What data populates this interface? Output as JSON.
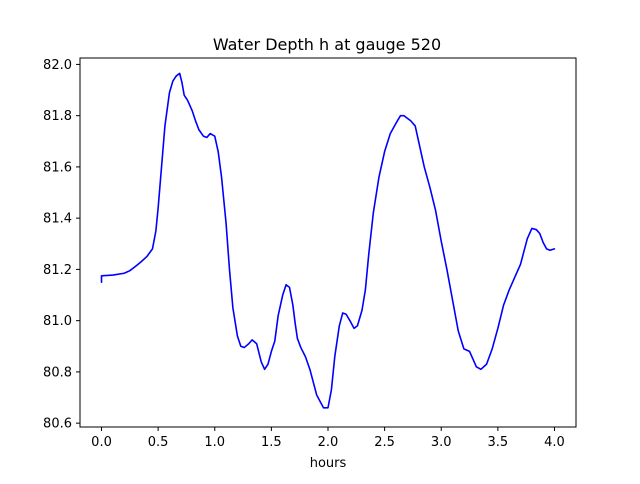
{
  "chart_data": {
    "type": "line",
    "title": "Water Depth h at gauge 520",
    "xlabel": "hours",
    "ylabel": "",
    "xlim": [
      -0.19,
      4.19
    ],
    "ylim": [
      80.585,
      82.025
    ],
    "xticks": [
      0.0,
      0.5,
      1.0,
      1.5,
      2.0,
      2.5,
      3.0,
      3.5,
      4.0
    ],
    "xtick_labels": [
      "0.0",
      "0.5",
      "1.0",
      "1.5",
      "2.0",
      "2.5",
      "3.0",
      "3.5",
      "4.0"
    ],
    "yticks": [
      80.6,
      80.8,
      81.0,
      81.2,
      81.4,
      81.6,
      81.8,
      82.0
    ],
    "ytick_labels": [
      "80.6",
      "80.8",
      "81.0",
      "81.2",
      "81.4",
      "81.6",
      "81.8",
      "82.0"
    ],
    "grid": false,
    "line_color": "#0000ff",
    "series": [
      {
        "x": [
          0.0,
          0.0,
          0.1,
          0.2,
          0.25,
          0.3,
          0.35,
          0.4,
          0.45,
          0.48,
          0.5,
          0.53,
          0.56,
          0.6,
          0.63,
          0.66,
          0.69,
          0.71,
          0.73,
          0.76,
          0.8,
          0.83,
          0.86,
          0.9,
          0.93,
          0.96,
          1.0,
          1.03,
          1.06,
          1.1,
          1.13,
          1.16,
          1.2,
          1.23,
          1.26,
          1.3,
          1.33,
          1.37,
          1.41,
          1.44,
          1.47,
          1.5,
          1.53,
          1.56,
          1.6,
          1.63,
          1.66,
          1.69,
          1.71,
          1.73,
          1.76,
          1.8,
          1.84,
          1.87,
          1.9,
          1.93,
          1.96,
          2.0,
          2.03,
          2.06,
          2.1,
          2.13,
          2.16,
          2.2,
          2.23,
          2.26,
          2.3,
          2.33,
          2.36,
          2.4,
          2.45,
          2.5,
          2.55,
          2.6,
          2.64,
          2.67,
          2.7,
          2.73,
          2.77,
          2.8,
          2.85,
          2.9,
          2.95,
          3.0,
          3.05,
          3.1,
          3.15,
          3.2,
          3.25,
          3.28,
          3.31,
          3.35,
          3.4,
          3.45,
          3.5,
          3.55,
          3.6,
          3.65,
          3.7,
          3.73,
          3.76,
          3.8,
          3.84,
          3.87,
          3.9,
          3.93,
          3.96,
          4.0
        ],
        "y": [
          81.15,
          81.175,
          81.178,
          81.185,
          81.195,
          81.212,
          81.23,
          81.25,
          81.28,
          81.35,
          81.44,
          81.6,
          81.76,
          81.89,
          81.935,
          81.955,
          81.965,
          81.93,
          81.88,
          81.86,
          81.82,
          81.78,
          81.745,
          81.72,
          81.715,
          81.73,
          81.72,
          81.66,
          81.56,
          81.38,
          81.2,
          81.05,
          80.94,
          80.9,
          80.895,
          80.91,
          80.925,
          80.91,
          80.84,
          80.81,
          80.83,
          80.88,
          80.92,
          81.02,
          81.1,
          81.14,
          81.13,
          81.06,
          80.99,
          80.93,
          80.895,
          80.86,
          80.81,
          80.76,
          80.71,
          80.685,
          80.66,
          80.66,
          80.73,
          80.86,
          80.98,
          81.03,
          81.025,
          80.995,
          80.97,
          80.98,
          81.04,
          81.12,
          81.26,
          81.42,
          81.56,
          81.66,
          81.73,
          81.77,
          81.8,
          81.8,
          81.79,
          81.78,
          81.76,
          81.7,
          81.6,
          81.52,
          81.43,
          81.31,
          81.2,
          81.08,
          80.96,
          80.89,
          80.88,
          80.85,
          80.82,
          80.81,
          80.83,
          80.89,
          80.97,
          81.06,
          81.12,
          81.17,
          81.22,
          81.27,
          81.32,
          81.36,
          81.355,
          81.34,
          81.305,
          81.28,
          81.275,
          81.28
        ]
      }
    ]
  }
}
